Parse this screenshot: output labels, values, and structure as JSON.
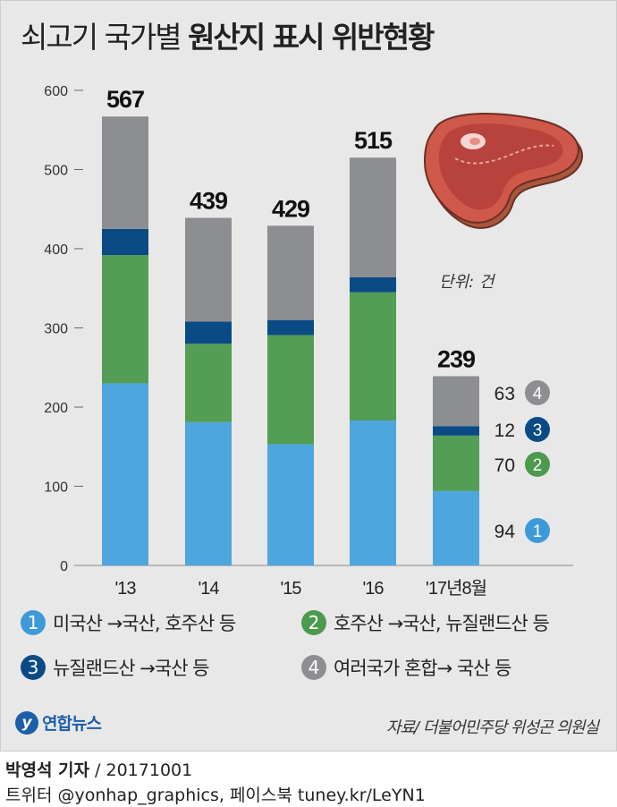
{
  "title": {
    "light": "쇠고기 국가별",
    "bold": "원산지 표시 위반현황"
  },
  "unit_label": "단위: 건",
  "colors": {
    "us": "#4ea6df",
    "au": "#539d55",
    "nz": "#0b4b85",
    "mixed": "#8d8e91"
  },
  "chart_data": {
    "type": "bar",
    "stacked": true,
    "categories": [
      "'13",
      "'14",
      "'15",
      "'16",
      "'17년8월"
    ],
    "totals": [
      567,
      439,
      429,
      515,
      239
    ],
    "series": [
      {
        "name": "미국산 →국산, 호주산 등",
        "values": [
          230,
          181,
          153,
          183,
          94
        ]
      },
      {
        "name": "호주산 →국산, 뉴질랜드산 등",
        "values": [
          162,
          99,
          138,
          162,
          70
        ]
      },
      {
        "name": "뉴질랜드산 →국산 등",
        "values": [
          33,
          28,
          19,
          19,
          12
        ]
      },
      {
        "name": "여러국가 혼합→ 국산 등",
        "values": [
          142,
          131,
          119,
          151,
          63
        ]
      }
    ],
    "last_labels": [
      {
        "value": "94",
        "badge": "1"
      },
      {
        "value": "70",
        "badge": "2"
      },
      {
        "value": "12",
        "badge": "3"
      },
      {
        "value": "63",
        "badge": "4"
      }
    ],
    "yticks": [
      0,
      100,
      200,
      300,
      400,
      500,
      600
    ],
    "ylim": [
      0,
      600
    ]
  },
  "legend": [
    {
      "num": "1",
      "label": "미국산 →국산, 호주산 등"
    },
    {
      "num": "2",
      "label": "호주산 →국산, 뉴질랜드산 등"
    },
    {
      "num": "3",
      "label": "뉴질랜드산 →국산 등"
    },
    {
      "num": "4",
      "label": "여러국가 혼합→ 국산 등"
    }
  ],
  "logo_text": "연합뉴스",
  "source": "자료/ 더불어민주당 위성곤 의원실",
  "credit": {
    "author": "박영석 기자",
    "date": " / 20171001"
  },
  "social": "트위터 @yonhap_graphics, 페이스북 tuney.kr/LeYN1"
}
